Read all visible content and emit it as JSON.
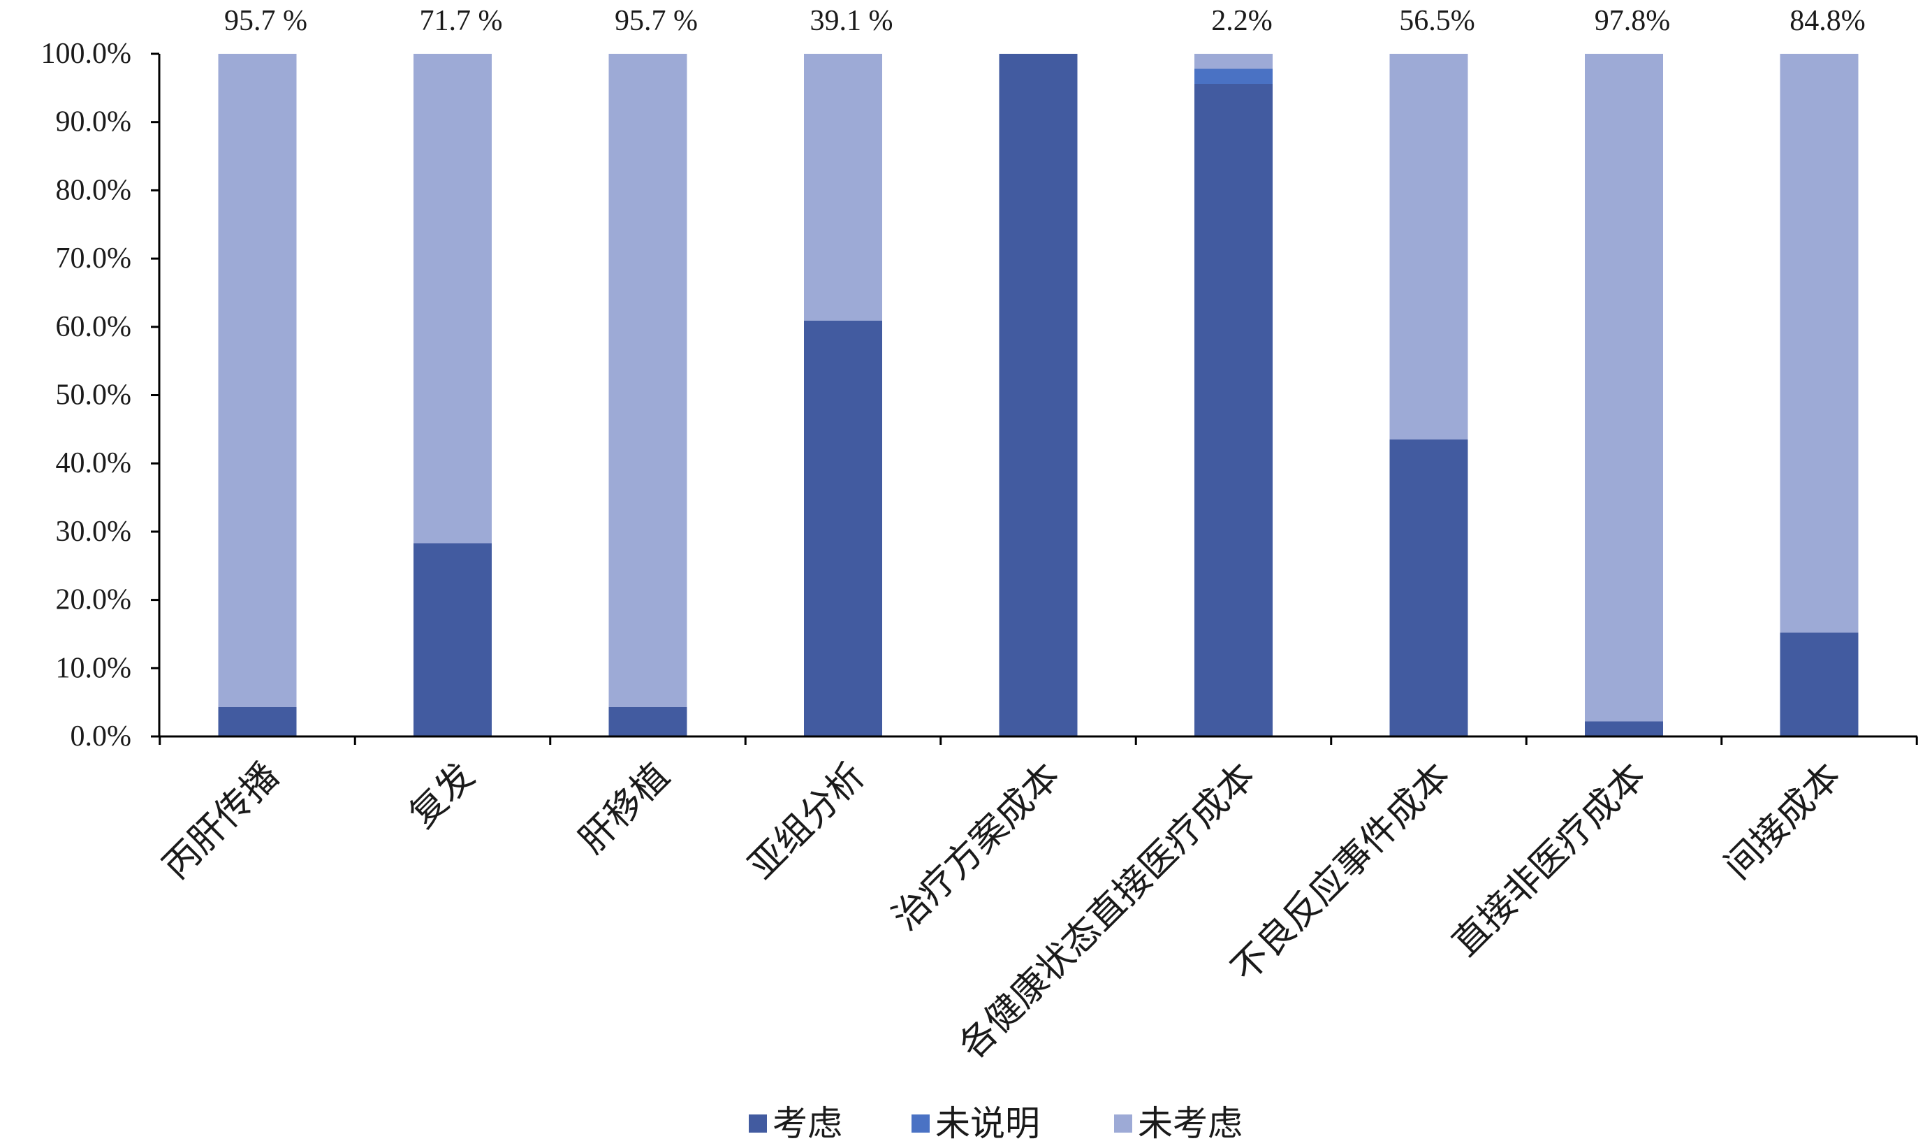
{
  "chart_data": {
    "type": "bar",
    "stacked": true,
    "percent": true,
    "categories": [
      "丙肝传播",
      "复发",
      "肝移植",
      "亚组分析",
      "治疗方案成本",
      "各健康状态直接医疗成本",
      "不良反应事件成本",
      "直接非医疗成本",
      "间接成本"
    ],
    "series": [
      {
        "name": "考虑",
        "color": "#425ba0",
        "values": [
          4.3,
          28.3,
          4.3,
          60.9,
          100.0,
          95.6,
          43.5,
          2.2,
          15.2
        ]
      },
      {
        "name": "未说明",
        "color": "#4a72c4",
        "values": [
          0,
          0,
          0,
          0,
          0,
          2.2,
          0,
          0,
          0
        ]
      },
      {
        "name": "未考虑",
        "color": "#9daad6",
        "values": [
          95.7,
          71.7,
          95.7,
          39.1,
          0,
          2.2,
          56.5,
          97.8,
          84.8
        ]
      }
    ],
    "top_labels": [
      "95.7 %",
      "71.7 %",
      "95.7 %",
      "39.1 %",
      "",
      "2.2%",
      "56.5%",
      "97.8%",
      "84.8%"
    ],
    "ylim": [
      0,
      100
    ],
    "y_ticks": [
      "0.0%",
      "10.0%",
      "20.0%",
      "30.0%",
      "40.0%",
      "50.0%",
      "60.0%",
      "70.0%",
      "80.0%",
      "90.0%",
      "100.0%"
    ],
    "grid": false,
    "legend_position": "bottom",
    "title": "",
    "xlabel": "",
    "ylabel": ""
  }
}
